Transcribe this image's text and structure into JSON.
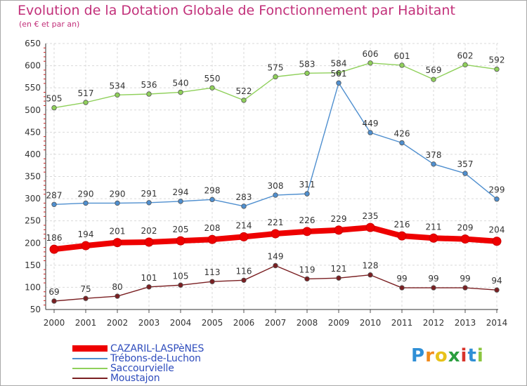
{
  "title": "Evolution de la Dotation Globale de Fonctionnement par Habitant",
  "subtitle": "(en € et par an)",
  "logo": {
    "letters": [
      "P",
      "r",
      "o",
      "x",
      "i",
      "t",
      "i"
    ],
    "colors": [
      "#2f8fd6",
      "#f08a1c",
      "#e8c21a",
      "#2a9e3e",
      "#d8342c",
      "#2f8fd6",
      "#8bc53f"
    ]
  },
  "chart_data": {
    "type": "line",
    "x": [
      "2000",
      "2001",
      "2002",
      "2003",
      "2004",
      "2005",
      "2006",
      "2007",
      "2008",
      "2009",
      "2010",
      "2011",
      "2012",
      "2013",
      "2014"
    ],
    "ylim": [
      50,
      650
    ],
    "yticks": [
      50,
      100,
      150,
      200,
      250,
      300,
      350,
      400,
      450,
      500,
      550,
      600,
      650
    ],
    "grid": true,
    "legend": "bottom-left",
    "series": [
      {
        "name": "CAZARIL-LASPèNES",
        "color": "#ee0000",
        "values": [
          186,
          194,
          201,
          202,
          205,
          208,
          214,
          221,
          226,
          229,
          235,
          216,
          211,
          209,
          204
        ]
      },
      {
        "name": "Trébons-de-Luchon",
        "color": "#4f8fcf",
        "values": [
          287,
          290,
          290,
          291,
          294,
          298,
          283,
          308,
          311,
          561,
          449,
          426,
          378,
          357,
          299
        ]
      },
      {
        "name": "Saccourvielle",
        "color": "#8fd05a",
        "values": [
          505,
          517,
          534,
          536,
          540,
          550,
          522,
          575,
          583,
          584,
          606,
          601,
          569,
          602,
          592
        ]
      },
      {
        "name": "Moustajon",
        "color": "#7a1f22",
        "values": [
          69,
          75,
          80,
          101,
          105,
          113,
          116,
          149,
          119,
          121,
          128,
          99,
          99,
          99,
          94
        ]
      }
    ]
  }
}
